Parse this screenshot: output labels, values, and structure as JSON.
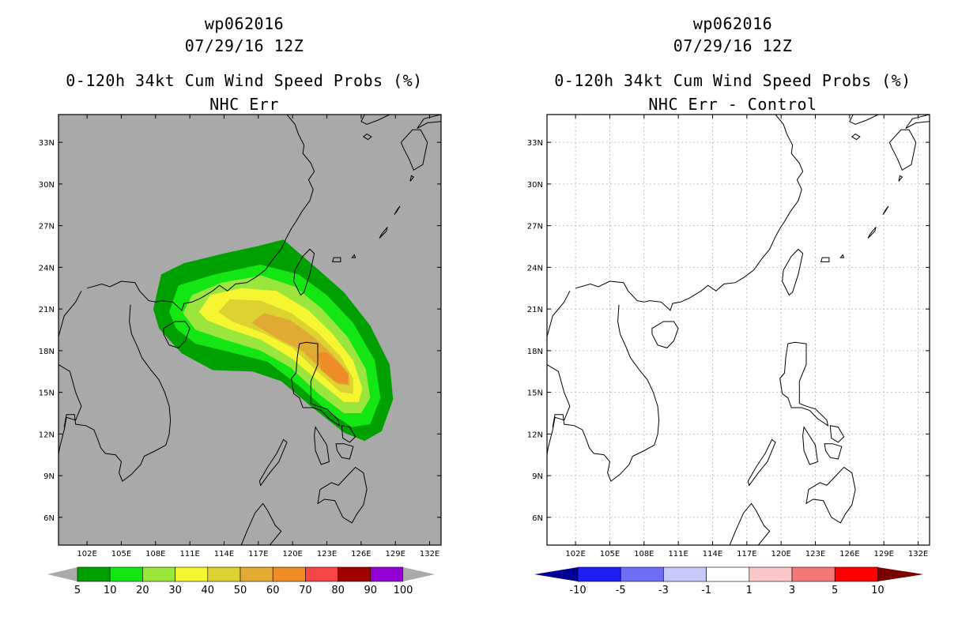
{
  "panels": [
    {
      "id": "cum-probs",
      "title_line1": "wp062016",
      "title_line2": "07/29/16 12Z",
      "title_line3": "0-120h 34kt Cum Wind Speed Probs (%)",
      "title_line4": "NHC Err",
      "background_color": "#a9a9a9",
      "colorbar_labels": [
        "5",
        "10",
        "20",
        "30",
        "40",
        "50",
        "60",
        "70",
        "80",
        "90",
        "100"
      ],
      "colorbar_colors": [
        "#00a000",
        "#14e614",
        "#9be63c",
        "#f5f532",
        "#dcd232",
        "#e1aa32",
        "#ee8c28",
        "#f54646",
        "#a00000",
        "#9400d3"
      ],
      "colorbar_extend_color": "#aaaaaa"
    },
    {
      "id": "cum-probs-diff",
      "title_line1": "wp062016",
      "title_line2": "07/29/16 12Z",
      "title_line3": "0-120h 34kt Cum Wind Speed Probs (%)",
      "title_line4": "NHC Err - Control",
      "background_color": "#ffffff",
      "colorbar_labels": [
        "-10",
        "-5",
        "-3",
        "-1",
        "1",
        "3",
        "5",
        "10"
      ],
      "colorbar_colors": [
        "#1e1ef0",
        "#6e6ef5",
        "#c8c8fa",
        "#ffffff",
        "#fac8c8",
        "#f57878",
        "#ff0000"
      ],
      "colorbar_left_extend_color": "#000096",
      "colorbar_right_extend_color": "#780000"
    }
  ],
  "axes": {
    "lon_labels": [
      "102E",
      "105E",
      "108E",
      "111E",
      "114E",
      "117E",
      "120E",
      "123E",
      "126E",
      "129E",
      "132E"
    ],
    "lat_labels": [
      "6N",
      "9N",
      "12N",
      "15N",
      "18N",
      "21N",
      "24N",
      "27N",
      "30N",
      "33N"
    ],
    "lon_range": [
      99.5,
      133
    ],
    "lat_range": [
      4,
      35
    ]
  },
  "swath_levels": [
    {
      "label": "5",
      "color": "#00a000"
    },
    {
      "label": "10",
      "color": "#14e614"
    },
    {
      "label": "20",
      "color": "#9be63c"
    },
    {
      "label": "30",
      "color": "#f5f532"
    },
    {
      "label": "40",
      "color": "#dcd232"
    },
    {
      "label": "50",
      "color": "#e1aa32"
    },
    {
      "label": "60",
      "color": "#ee8c28"
    }
  ]
}
